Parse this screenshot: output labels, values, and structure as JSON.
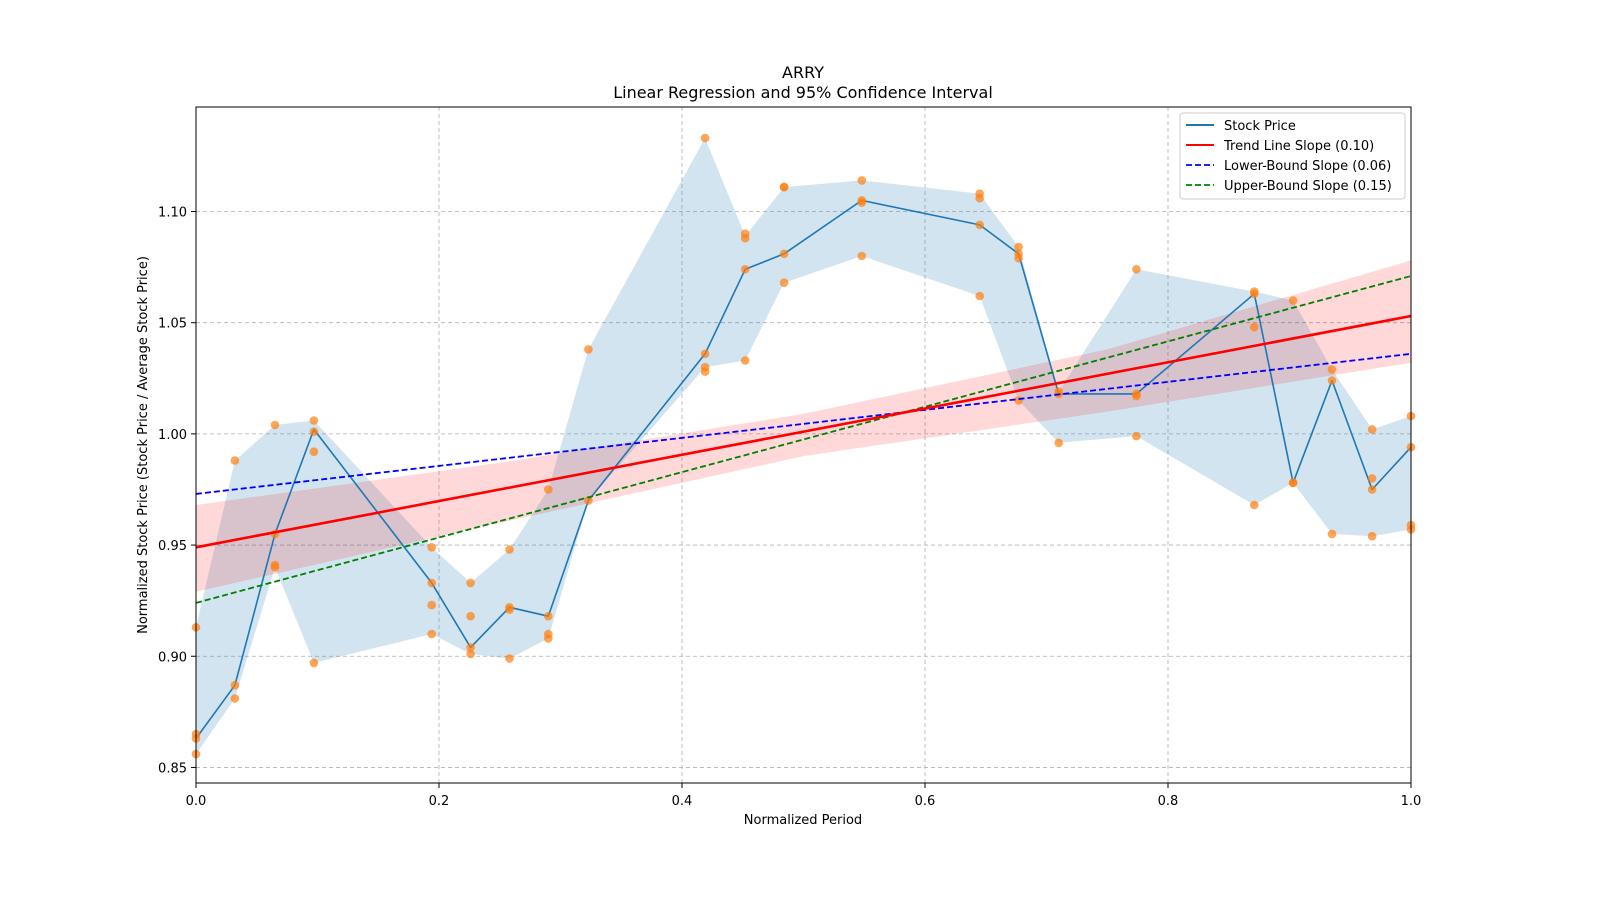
{
  "chart_data": {
    "type": "line",
    "title": "ARRY",
    "subtitle": "Linear Regression and 95% Confidence Interval",
    "xlabel": "Normalized Period",
    "ylabel": "Normalized Stock Price (Stock Price / Average Stock Price)",
    "xlim": [
      0,
      1
    ],
    "ylim": [
      0.843,
      1.147
    ],
    "xticks": [
      0.0,
      0.2,
      0.4,
      0.6,
      0.8,
      1.0
    ],
    "xtick_labels": [
      "0.0",
      "0.2",
      "0.4",
      "0.6",
      "0.8",
      "1.0"
    ],
    "yticks": [
      0.85,
      0.9,
      0.95,
      1.0,
      1.05,
      1.1
    ],
    "ytick_labels": [
      "0.85",
      "0.90",
      "0.95",
      "1.00",
      "1.05",
      "1.10"
    ],
    "grid": true,
    "legend_position": "top-right",
    "colors": {
      "stock": "#1f77b4",
      "band": "#1f77b4",
      "points": "#ff7f0e",
      "trend": "#ff0000",
      "trend_ci": "#ff0000",
      "lower": "#0000ff",
      "upper": "#008000"
    },
    "legend": [
      {
        "label": "Stock Price",
        "color": "#1f77b4",
        "style": "solid"
      },
      {
        "label": "Trend Line Slope (0.10)",
        "color": "#ff0000",
        "style": "solid"
      },
      {
        "label": "Lower-Bound Slope (0.06)",
        "color": "#0000ff",
        "style": "dashed"
      },
      {
        "label": "Upper-Bound Slope (0.15)",
        "color": "#008000",
        "style": "dashed"
      }
    ],
    "stock_price": {
      "x": [
        0.0,
        0.032,
        0.065,
        0.097,
        0.194,
        0.226,
        0.258,
        0.29,
        0.323,
        0.419,
        0.452,
        0.484,
        0.548,
        0.645,
        0.677,
        0.71,
        0.774,
        0.871,
        0.903,
        0.935,
        0.968,
        1.0
      ],
      "y": [
        0.863,
        0.887,
        0.955,
        1.002,
        0.933,
        0.904,
        0.922,
        0.918,
        0.97,
        1.036,
        1.074,
        1.081,
        1.105,
        1.094,
        1.081,
        1.018,
        1.018,
        1.063,
        0.978,
        1.024,
        0.975,
        0.994
      ]
    },
    "band": {
      "x": [
        0.0,
        0.032,
        0.065,
        0.097,
        0.194,
        0.226,
        0.258,
        0.29,
        0.323,
        0.419,
        0.452,
        0.484,
        0.548,
        0.645,
        0.677,
        0.71,
        0.774,
        0.871,
        0.903,
        0.935,
        0.968,
        1.0
      ],
      "lower": [
        0.856,
        0.881,
        0.94,
        0.897,
        0.91,
        0.901,
        0.899,
        0.908,
        0.97,
        1.03,
        1.033,
        1.068,
        1.08,
        1.062,
        1.015,
        0.996,
        0.999,
        0.968,
        0.978,
        0.955,
        0.954,
        0.957
      ],
      "upper": [
        0.913,
        0.988,
        1.004,
        1.006,
        0.949,
        0.933,
        0.948,
        0.975,
        1.038,
        1.133,
        1.089,
        1.111,
        1.114,
        1.108,
        1.084,
        1.019,
        1.074,
        1.064,
        1.06,
        1.029,
        1.002,
        1.008
      ]
    },
    "scatter": [
      [
        0.0,
        0.913
      ],
      [
        0.0,
        0.865
      ],
      [
        0.0,
        0.856
      ],
      [
        0.0,
        0.863
      ],
      [
        0.032,
        0.988
      ],
      [
        0.032,
        0.887
      ],
      [
        0.032,
        0.881
      ],
      [
        0.065,
        1.004
      ],
      [
        0.065,
        0.955
      ],
      [
        0.065,
        0.941
      ],
      [
        0.065,
        0.94
      ],
      [
        0.097,
        1.006
      ],
      [
        0.097,
        1.001
      ],
      [
        0.097,
        0.992
      ],
      [
        0.097,
        0.897
      ],
      [
        0.194,
        0.949
      ],
      [
        0.194,
        0.933
      ],
      [
        0.194,
        0.923
      ],
      [
        0.194,
        0.91
      ],
      [
        0.226,
        0.933
      ],
      [
        0.226,
        0.918
      ],
      [
        0.226,
        0.904
      ],
      [
        0.226,
        0.901
      ],
      [
        0.258,
        0.948
      ],
      [
        0.258,
        0.922
      ],
      [
        0.258,
        0.921
      ],
      [
        0.258,
        0.899
      ],
      [
        0.29,
        0.975
      ],
      [
        0.29,
        0.918
      ],
      [
        0.29,
        0.91
      ],
      [
        0.29,
        0.908
      ],
      [
        0.323,
        1.038
      ],
      [
        0.323,
        0.97
      ],
      [
        0.419,
        1.133
      ],
      [
        0.419,
        1.036
      ],
      [
        0.419,
        1.03
      ],
      [
        0.419,
        1.028
      ],
      [
        0.452,
        1.09
      ],
      [
        0.452,
        1.088
      ],
      [
        0.452,
        1.074
      ],
      [
        0.452,
        1.033
      ],
      [
        0.484,
        1.111
      ],
      [
        0.484,
        1.111
      ],
      [
        0.484,
        1.081
      ],
      [
        0.484,
        1.068
      ],
      [
        0.548,
        1.114
      ],
      [
        0.548,
        1.105
      ],
      [
        0.548,
        1.104
      ],
      [
        0.548,
        1.08
      ],
      [
        0.645,
        1.108
      ],
      [
        0.645,
        1.106
      ],
      [
        0.645,
        1.094
      ],
      [
        0.645,
        1.062
      ],
      [
        0.677,
        1.084
      ],
      [
        0.677,
        1.081
      ],
      [
        0.677,
        1.079
      ],
      [
        0.677,
        1.015
      ],
      [
        0.71,
        1.019
      ],
      [
        0.71,
        1.018
      ],
      [
        0.71,
        0.996
      ],
      [
        0.774,
        1.074
      ],
      [
        0.774,
        1.017
      ],
      [
        0.774,
        1.018
      ],
      [
        0.774,
        0.999
      ],
      [
        0.871,
        1.064
      ],
      [
        0.871,
        1.063
      ],
      [
        0.871,
        1.048
      ],
      [
        0.871,
        0.968
      ],
      [
        0.903,
        1.06
      ],
      [
        0.903,
        0.978
      ],
      [
        0.903,
        0.978
      ],
      [
        0.935,
        1.029
      ],
      [
        0.935,
        1.024
      ],
      [
        0.935,
        0.955
      ],
      [
        0.968,
        1.002
      ],
      [
        0.968,
        0.98
      ],
      [
        0.968,
        0.975
      ],
      [
        0.968,
        0.954
      ],
      [
        1.0,
        1.008
      ],
      [
        1.0,
        0.994
      ],
      [
        1.0,
        0.959
      ],
      [
        1.0,
        0.957
      ]
    ],
    "trend_line": {
      "x": [
        0,
        1
      ],
      "y": [
        0.949,
        1.053
      ]
    },
    "trend_ci": {
      "x": [
        0.0,
        0.25,
        0.5,
        0.75,
        1.0
      ],
      "upper": [
        0.968,
        0.987,
        1.009,
        1.038,
        1.078
      ],
      "lower": [
        0.929,
        0.96,
        0.99,
        1.01,
        1.032
      ]
    },
    "lower_bound_line": {
      "x": [
        0,
        1
      ],
      "y": [
        0.973,
        1.036
      ]
    },
    "upper_bound_line": {
      "x": [
        0,
        1
      ],
      "y": [
        0.924,
        1.071
      ]
    }
  }
}
